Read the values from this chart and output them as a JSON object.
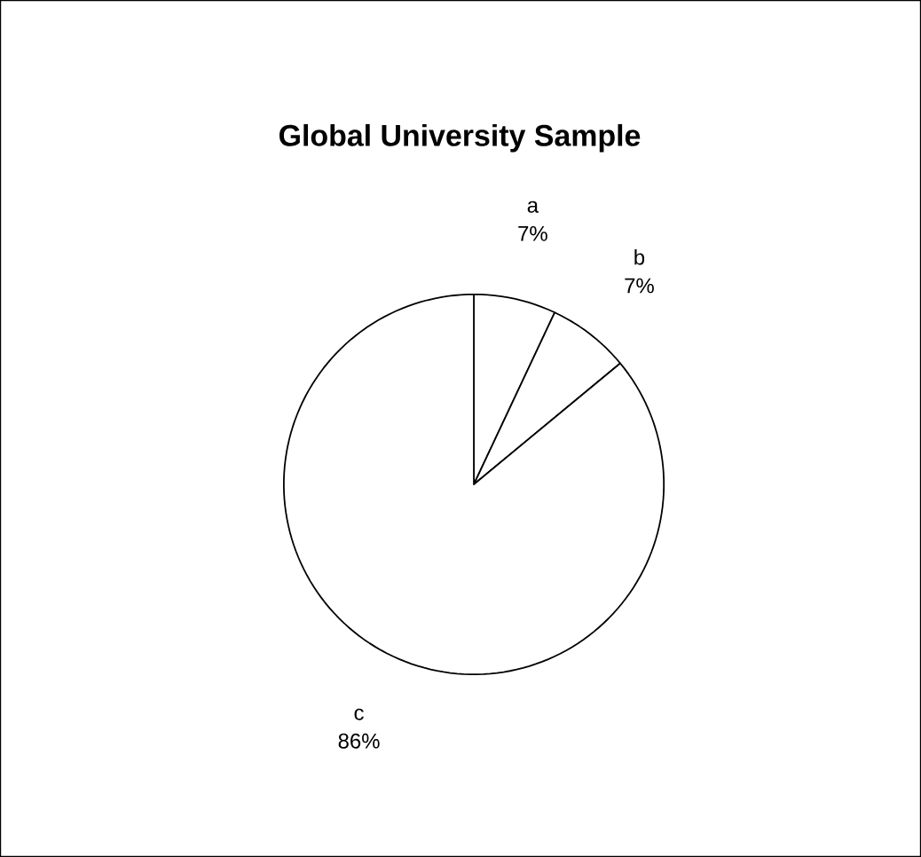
{
  "chart_data": {
    "type": "pie",
    "title": "Global University Sample",
    "categories": [
      "a",
      "b",
      "c"
    ],
    "values": [
      7,
      7,
      86
    ],
    "value_labels": [
      "7%",
      "7%",
      "86%"
    ],
    "colors": [
      "#ffffff",
      "#ffffff",
      "#ffffff"
    ]
  }
}
